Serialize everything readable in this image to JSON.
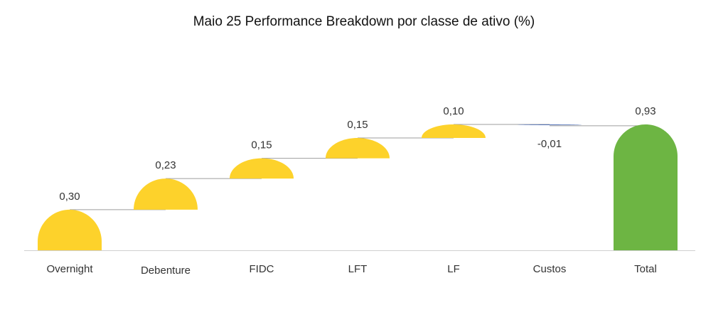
{
  "chart_data": {
    "type": "bar",
    "subtype": "waterfall",
    "title": "Maio 25 Performance Breakdown por classe de ativo (%)",
    "categories": [
      "Overnight",
      "Debenture",
      "FIDC",
      "LFT",
      "LF",
      "Custos",
      "Total"
    ],
    "values": [
      0.3,
      0.23,
      0.15,
      0.15,
      0.1,
      -0.01,
      0.93
    ],
    "value_labels": [
      "0,30",
      "0,23",
      "0,15",
      "0,15",
      "0,10",
      "-0,01",
      "0,93"
    ],
    "is_total": [
      false,
      false,
      false,
      false,
      false,
      false,
      true
    ],
    "ylim": [
      0,
      0.93
    ],
    "grid": false,
    "legend": "none",
    "colors": {
      "increase": "#FDD22B",
      "decrease": "#3F62B0",
      "total": "#6DB543",
      "connector": "#9E9E9E",
      "axis": "#D0D0D0"
    }
  }
}
